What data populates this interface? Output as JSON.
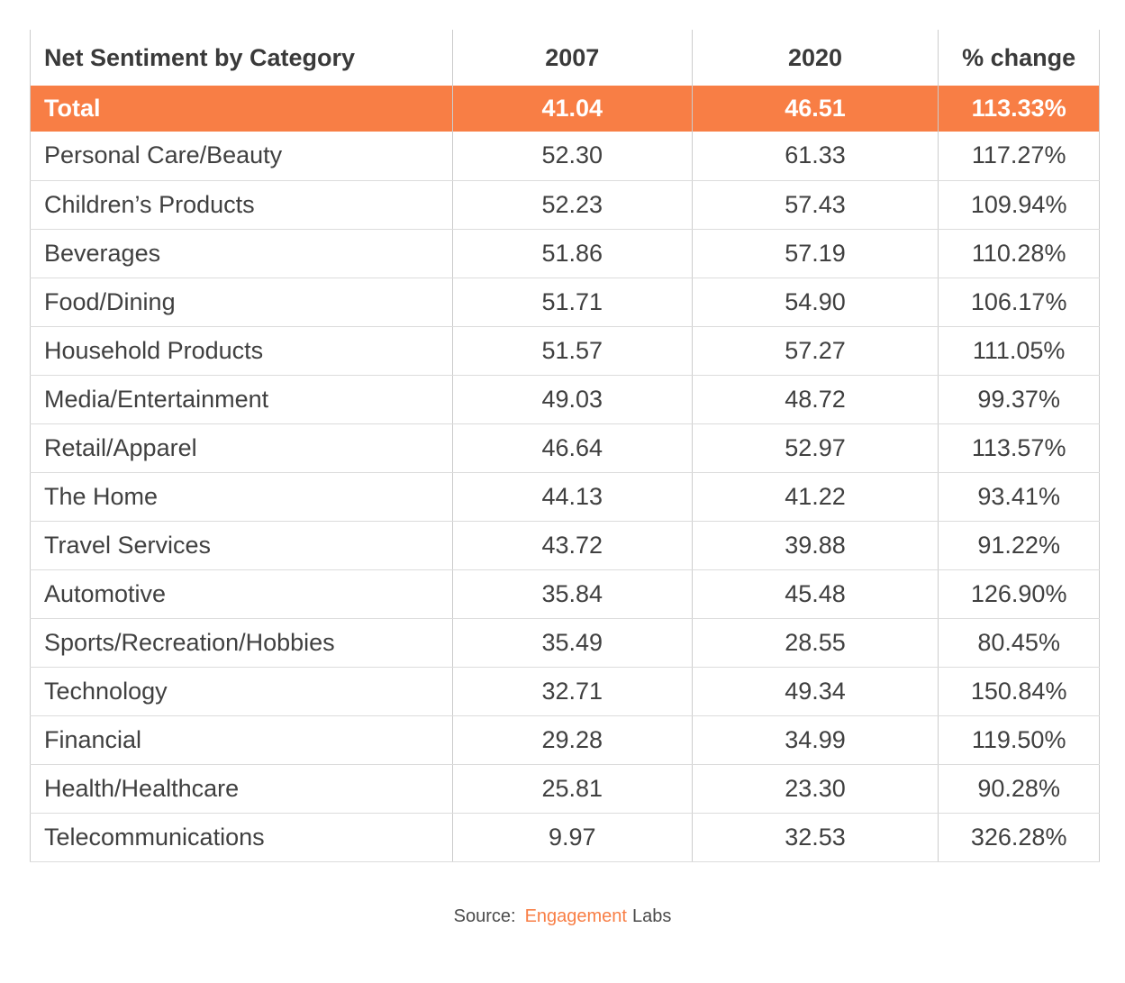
{
  "colors": {
    "accent": "#F87E45",
    "header_text": "#3a3a3a",
    "body_text": "#404040",
    "grid_line": "#cccccc",
    "row_line": "#dcdcdc",
    "source_text": "#4a4a4a"
  },
  "table": {
    "header": {
      "category": "Net Sentiment by Category",
      "y2007": "2007",
      "y2020": "2020",
      "change": "% change"
    },
    "total": {
      "category": "Total",
      "y2007": "41.04",
      "y2020": "46.51",
      "change": "113.33%"
    },
    "rows": [
      {
        "category": "Personal Care/Beauty",
        "y2007": "52.30",
        "y2020": "61.33",
        "change": "117.27%"
      },
      {
        "category": "Children’s Products",
        "y2007": "52.23",
        "y2020": "57.43",
        "change": "109.94%"
      },
      {
        "category": "Beverages",
        "y2007": "51.86",
        "y2020": "57.19",
        "change": "110.28%"
      },
      {
        "category": "Food/Dining",
        "y2007": "51.71",
        "y2020": "54.90",
        "change": "106.17%"
      },
      {
        "category": "Household Products",
        "y2007": "51.57",
        "y2020": "57.27",
        "change": "111.05%"
      },
      {
        "category": "Media/Entertainment",
        "y2007": "49.03",
        "y2020": "48.72",
        "change": "99.37%"
      },
      {
        "category": "Retail/Apparel",
        "y2007": "46.64",
        "y2020": "52.97",
        "change": "113.57%"
      },
      {
        "category": "The Home",
        "y2007": "44.13",
        "y2020": "41.22",
        "change": "93.41%"
      },
      {
        "category": "Travel Services",
        "y2007": "43.72",
        "y2020": "39.88",
        "change": "91.22%"
      },
      {
        "category": "Automotive",
        "y2007": "35.84",
        "y2020": "45.48",
        "change": "126.90%"
      },
      {
        "category": "Sports/Recreation/Hobbies",
        "y2007": "35.49",
        "y2020": "28.55",
        "change": "80.45%"
      },
      {
        "category": "Technology",
        "y2007": "32.71",
        "y2020": "49.34",
        "change": "150.84%"
      },
      {
        "category": "Financial",
        "y2007": "29.28",
        "y2020": "34.99",
        "change": "119.50%"
      },
      {
        "category": "Health/Healthcare",
        "y2007": "25.81",
        "y2020": "23.30",
        "change": "90.28%"
      },
      {
        "category": "Telecommunications",
        "y2007": "9.97",
        "y2020": "32.53",
        "change": "326.28%"
      }
    ]
  },
  "source": {
    "label": "Source:",
    "brand": "Engagement",
    "suffix": "Labs"
  },
  "chart_data": {
    "type": "table",
    "title": "Net Sentiment by Category",
    "columns": [
      "Net Sentiment by Category",
      "2007",
      "2020",
      "% change"
    ],
    "rows": [
      [
        "Total",
        41.04,
        46.51,
        "113.33%"
      ],
      [
        "Personal Care/Beauty",
        52.3,
        61.33,
        "117.27%"
      ],
      [
        "Children’s Products",
        52.23,
        57.43,
        "109.94%"
      ],
      [
        "Beverages",
        51.86,
        57.19,
        "110.28%"
      ],
      [
        "Food/Dining",
        51.71,
        54.9,
        "106.17%"
      ],
      [
        "Household Products",
        51.57,
        57.27,
        "111.05%"
      ],
      [
        "Media/Entertainment",
        49.03,
        48.72,
        "99.37%"
      ],
      [
        "Retail/Apparel",
        46.64,
        52.97,
        "113.57%"
      ],
      [
        "The Home",
        44.13,
        41.22,
        "93.41%"
      ],
      [
        "Travel Services",
        43.72,
        39.88,
        "91.22%"
      ],
      [
        "Automotive",
        35.84,
        45.48,
        "126.90%"
      ],
      [
        "Sports/Recreation/Hobbies",
        35.49,
        28.55,
        "80.45%"
      ],
      [
        "Technology",
        32.71,
        49.34,
        "150.84%"
      ],
      [
        "Financial",
        29.28,
        34.99,
        "119.50%"
      ],
      [
        "Health/Healthcare",
        25.81,
        23.3,
        "90.28%"
      ],
      [
        "Telecommunications",
        9.97,
        32.53,
        "326.28%"
      ]
    ],
    "highlight_row": "Total",
    "source": "Source: Engagement Labs"
  }
}
